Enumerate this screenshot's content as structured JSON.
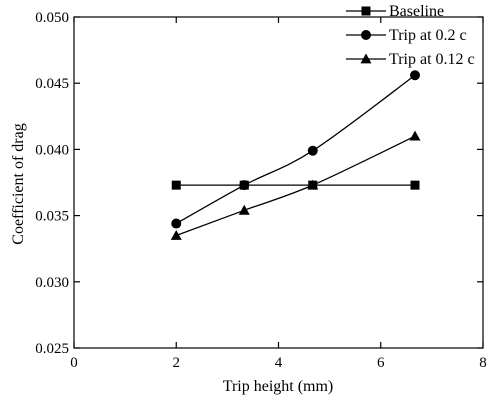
{
  "chart_data": {
    "type": "line",
    "xlabel": "Trip height (mm)",
    "ylabel": "Coefficient of drag",
    "xlim": [
      0,
      8
    ],
    "ylim": [
      0.025,
      0.05
    ],
    "xticks": [
      0,
      2,
      4,
      6,
      8
    ],
    "xtick_labels": [
      "0",
      "2",
      "4",
      "6",
      "8"
    ],
    "yticks": [
      0.025,
      0.03,
      0.035,
      0.04,
      0.045,
      0.05
    ],
    "ytick_labels": [
      "0.025",
      "0.030",
      "0.035",
      "0.040",
      "0.045",
      "0.050"
    ],
    "grid": false,
    "legend": "top-right",
    "series": [
      {
        "name": "Baseline",
        "marker": "square",
        "color": "#000000",
        "x": [
          2,
          3.33,
          4.67,
          6.67
        ],
        "y": [
          0.0373,
          0.0373,
          0.0373,
          0.0373
        ]
      },
      {
        "name": "Trip at 0.2 c",
        "marker": "circle",
        "color": "#000000",
        "x": [
          2,
          3.33,
          4.67,
          6.67
        ],
        "y": [
          0.0344,
          0.0373,
          0.0399,
          0.0456
        ]
      },
      {
        "name": "Trip at 0.12 c",
        "marker": "triangle",
        "color": "#000000",
        "x": [
          2,
          3.33,
          4.67,
          6.67
        ],
        "y": [
          0.0335,
          0.0354,
          0.0373,
          0.041
        ]
      }
    ]
  }
}
